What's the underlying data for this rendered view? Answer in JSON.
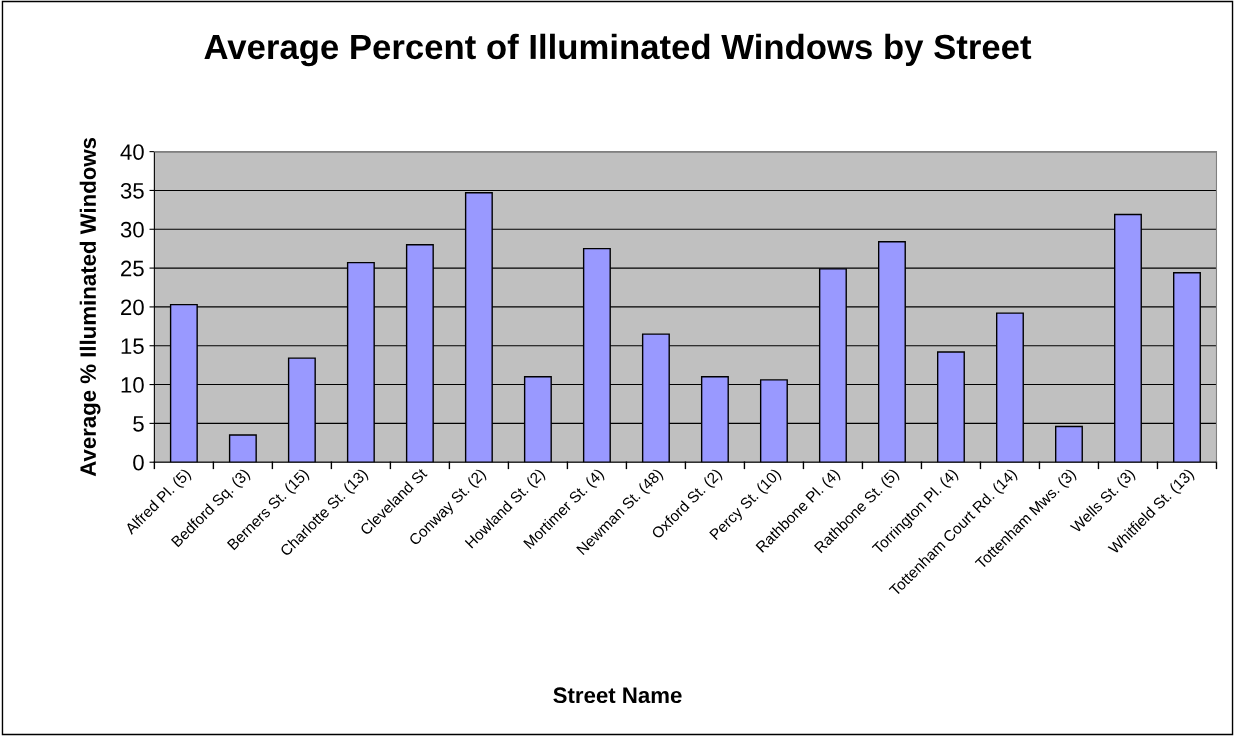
{
  "chart_data": {
    "type": "bar",
    "title": "Average Percent of Illuminated Windows by Street",
    "xlabel": "Street Name",
    "ylabel": "Average % Illuminated Windows",
    "categories": [
      "Alfred Pl. (5)",
      "Bedford Sq. (3)",
      "Berners St. (15)",
      "Charlotte St. (13)",
      "Cleveland St",
      "Conway St. (2)",
      "Howland St. (2)",
      "Mortimer St. (4)",
      "Newman St. (48)",
      "Oxford St. (2)",
      "Percy St. (10)",
      "Rathbone Pl. (4)",
      "Rathbone St. (5)",
      "Torrington Pl. (4)",
      "Tottenham Court Rd. (14)",
      "Tottenham Mws. (3)",
      "Wells St. (3)",
      "Whitfield St. (13)"
    ],
    "values": [
      20.3,
      3.5,
      13.4,
      25.7,
      28.0,
      34.7,
      11.0,
      27.5,
      16.5,
      11.0,
      10.6,
      24.9,
      28.4,
      14.2,
      19.2,
      4.6,
      31.9,
      24.4
    ],
    "color": "#9999ff",
    "ylim": [
      0,
      40
    ],
    "yticks": [
      0,
      5,
      10,
      15,
      20,
      25,
      30,
      35,
      40
    ],
    "grid": "y",
    "legend": false
  }
}
